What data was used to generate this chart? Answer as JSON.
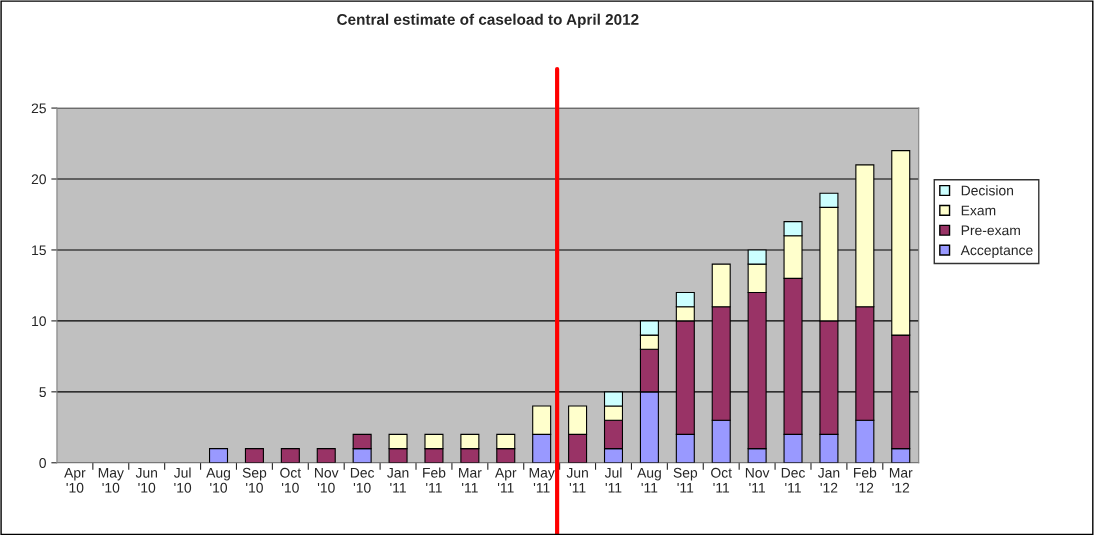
{
  "chart_data": {
    "type": "bar",
    "title": "Central estimate of caseload to April 2012",
    "stacked": true,
    "categories": [
      "Apr\n'10",
      "May\n'10",
      "Jun\n'10",
      "Jul\n'10",
      "Aug\n'10",
      "Sep\n'10",
      "Oct\n'10",
      "Nov\n'10",
      "Dec\n'10",
      "Jan\n'11",
      "Feb\n'11",
      "Mar\n'11",
      "Apr\n'11",
      "May\n'11",
      "Jun\n'11",
      "Jul\n'11",
      "Aug\n'11",
      "Sep\n'11",
      "Oct\n'11",
      "Nov\n'11",
      "Dec\n'11",
      "Jan\n'12",
      "Feb\n'12",
      "Mar\n'12"
    ],
    "series": [
      {
        "name": "Acceptance",
        "color": "#9999ff",
        "values": [
          0,
          0,
          0,
          0,
          1,
          0,
          0,
          0,
          1,
          0,
          0,
          0,
          0,
          2,
          0,
          1,
          5,
          2,
          3,
          1,
          2,
          2,
          3,
          1
        ]
      },
      {
        "name": "Pre-exam",
        "color": "#993366",
        "values": [
          0,
          0,
          0,
          0,
          0,
          1,
          1,
          1,
          1,
          1,
          1,
          1,
          1,
          0,
          2,
          2,
          3,
          8,
          8,
          11,
          11,
          8,
          8,
          8
        ]
      },
      {
        "name": "Exam",
        "color": "#ffffcc",
        "values": [
          0,
          0,
          0,
          0,
          0,
          0,
          0,
          0,
          0,
          1,
          1,
          1,
          1,
          2,
          2,
          1,
          1,
          1,
          3,
          2,
          3,
          8,
          10,
          13
        ]
      },
      {
        "name": "Decision",
        "color": "#ccffff",
        "values": [
          0,
          0,
          0,
          0,
          0,
          0,
          0,
          0,
          0,
          0,
          0,
          0,
          0,
          0,
          0,
          1,
          1,
          1,
          0,
          1,
          1,
          1,
          0,
          0
        ]
      }
    ],
    "ylim": [
      0,
      25
    ],
    "yticks": [
      0,
      5,
      10,
      15,
      20,
      25
    ],
    "grid": "y",
    "legend": "right",
    "ref_lines": [
      {
        "axis": "x",
        "value": "May\n'11",
        "color": "#ff0000",
        "line_style": "solid"
      }
    ]
  }
}
